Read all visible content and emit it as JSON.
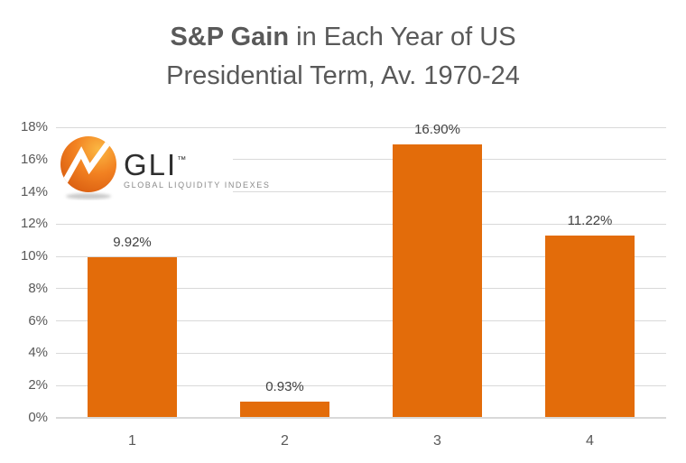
{
  "title": {
    "bold": "S&P Gain",
    "rest": " in Each Year of US",
    "line2": "Presidential Term, Av. 1970-24"
  },
  "logo": {
    "name": "GLI",
    "tm": "™",
    "tagline": "GLOBAL LIQUIDITY INDEXES"
  },
  "colors": {
    "bar": "#E36C0A",
    "gridline": "#D9D9D9",
    "title_text": "#595959",
    "axis_text": "#595959",
    "data_label": "#404040",
    "logo_gradient": [
      "#FBB843",
      "#F28121",
      "#D4560D"
    ],
    "logo_shadow": "#9e9e9e"
  },
  "chart_data": {
    "type": "bar",
    "title": "S&P Gain in Each Year of US Presidential Term, Av. 1970-24",
    "categories": [
      "1",
      "2",
      "3",
      "4"
    ],
    "values": [
      9.92,
      0.93,
      16.9,
      11.22
    ],
    "data_labels": [
      "9.92%",
      "0.93%",
      "16.90%",
      "11.22%"
    ],
    "xlabel": "",
    "ylabel": "",
    "ylim": [
      0,
      18
    ],
    "ytick_step": 2,
    "ytick_labels": [
      "0%",
      "2%",
      "4%",
      "6%",
      "8%",
      "10%",
      "12%",
      "14%",
      "16%",
      "18%"
    ],
    "grid": true,
    "legend": false
  }
}
